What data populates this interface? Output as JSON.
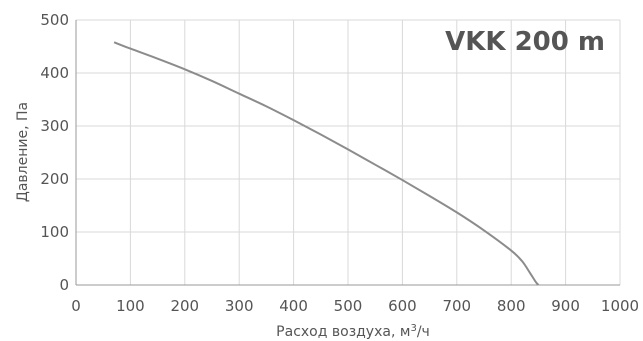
{
  "chart_data": {
    "type": "line",
    "title": "VKK 200 m",
    "xlabel_main": "Расход воздуха, м",
    "xlabel_sup": "3",
    "xlabel_tail": "/ч",
    "ylabel": "Давление, Па",
    "xlim": [
      0,
      1000
    ],
    "ylim": [
      0,
      500
    ],
    "x_ticks": [
      0,
      100,
      200,
      300,
      400,
      500,
      600,
      700,
      800,
      900,
      1000
    ],
    "y_ticks": [
      0,
      100,
      200,
      300,
      400,
      500
    ],
    "x_tick_labels": [
      "0",
      "100",
      "200",
      "300",
      "400",
      "500",
      "600",
      "700",
      "800",
      "900",
      "1000"
    ],
    "y_tick_labels": [
      "0",
      "100",
      "200",
      "300",
      "400",
      "500"
    ],
    "grid": true,
    "series": [
      {
        "color": "#8c8c8c",
        "x": [
          70,
          100,
          150,
          200,
          250,
          300,
          350,
          400,
          450,
          500,
          550,
          600,
          650,
          700,
          750,
          800,
          820,
          835,
          845,
          850
        ],
        "y": [
          458,
          446,
          427,
          407,
          385,
          361,
          337,
          311,
          284,
          256,
          227,
          198,
          168,
          137,
          103,
          65,
          45,
          22,
          6,
          0
        ]
      }
    ]
  }
}
